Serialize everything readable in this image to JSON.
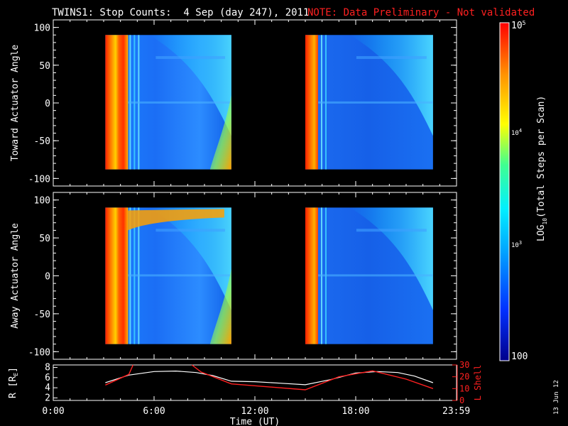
{
  "header": {
    "title": "TWINS1: Stop Counts:  4 Sep (day 247), 2011",
    "note": "NOTE: Data Preliminary - Not validated"
  },
  "footer": {
    "date_stamp": "13 Jun 12"
  },
  "colorbar": {
    "label": "LOG10(Total Steps per Scan)",
    "label_main": "LOG",
    "label_sub": "10",
    "label_rest": "(Total Steps per Scan)",
    "top_tick": "10",
    "top_tick_exp": "5",
    "mid_tick": "10",
    "mid_tick_exp": "4",
    "low_tick": "10",
    "low_tick_exp": "3",
    "bottom_tick": "100",
    "min": 100,
    "max": 100000,
    "scale": "log",
    "colors": [
      "#00008b",
      "#0040ff",
      "#00b0ff",
      "#00ffd0",
      "#80ff60",
      "#ffff00",
      "#ff8000",
      "#ff0000"
    ]
  },
  "chart_data": [
    {
      "type": "heatmap",
      "panel": "toward",
      "ylabel": "Toward Actuator Angle",
      "ylim": [
        -110,
        110
      ],
      "yticks": [
        100,
        50,
        0,
        -50,
        -100
      ],
      "ytick_labels": [
        "100",
        "50",
        "0",
        "-50",
        "-100"
      ],
      "xlim_hours": [
        0,
        24
      ],
      "data_blocks": [
        {
          "start_hour": 3.1,
          "end_hour": 10.6,
          "angle_range": [
            -88,
            90
          ]
        },
        {
          "start_hour": 15.0,
          "end_hour": 22.6,
          "angle_range": [
            -88,
            90
          ]
        }
      ]
    },
    {
      "type": "heatmap",
      "panel": "away",
      "ylabel": "Away Actuator Angle",
      "ylim": [
        -110,
        110
      ],
      "yticks": [
        100,
        50,
        0,
        -50,
        -100
      ],
      "ytick_labels": [
        "100",
        "50",
        "0",
        "-50",
        "-100"
      ],
      "xlim_hours": [
        0,
        24
      ],
      "data_blocks": [
        {
          "start_hour": 3.1,
          "end_hour": 10.6,
          "angle_range": [
            -90,
            90
          ]
        },
        {
          "start_hour": 15.0,
          "end_hour": 22.6,
          "angle_range": [
            -90,
            90
          ]
        }
      ]
    },
    {
      "type": "line",
      "panel": "orbit",
      "ylabel": "R [RE]",
      "ylabel_main": "R [R",
      "ylabel_sub": "E",
      "ylabel_end": "]",
      "y2label": "L Shell",
      "ylim": [
        1.5,
        8.5
      ],
      "yticks": [
        2,
        4,
        6,
        8
      ],
      "ytick_labels": [
        "2",
        "4",
        "6",
        "8"
      ],
      "y2lim": [
        0,
        30
      ],
      "y2ticks": [
        0,
        10,
        20,
        30
      ],
      "y2tick_labels": [
        "0",
        "10",
        "20",
        "30"
      ],
      "xlabel": "Time (UT)",
      "xlim_hours": [
        0,
        24
      ],
      "xticks_hours": [
        0,
        6,
        12,
        18,
        23.983
      ],
      "xtick_labels": [
        "0:00",
        "6:00",
        "12:00",
        "18:00",
        "23:59"
      ],
      "series": [
        {
          "name": "R",
          "color": "#ffffff",
          "x": [
            3.1,
            4.5,
            6.0,
            7.3,
            8.5,
            9.5,
            10.6,
            12.0,
            13.5,
            15.0,
            16.5,
            18.0,
            19.3,
            20.5,
            21.5,
            22.6
          ],
          "y": [
            5.0,
            6.5,
            7.2,
            7.3,
            7.0,
            6.4,
            5.3,
            5.2,
            4.9,
            4.6,
            5.6,
            6.9,
            7.2,
            7.0,
            6.3,
            5.0
          ]
        },
        {
          "name": "L Shell",
          "color": "#ff2020",
          "segments": [
            {
              "x": [
                3.1,
                4.5,
                4.75
              ],
              "y": [
                13,
                22,
                30
              ]
            },
            {
              "x": [
                8.25,
                8.8,
                10.6,
                15.0,
                17.0,
                19.0,
                21.0,
                22.6
              ],
              "y": [
                30,
                24,
                14,
                9,
                20,
                25,
                18,
                10
              ]
            }
          ]
        }
      ]
    }
  ]
}
